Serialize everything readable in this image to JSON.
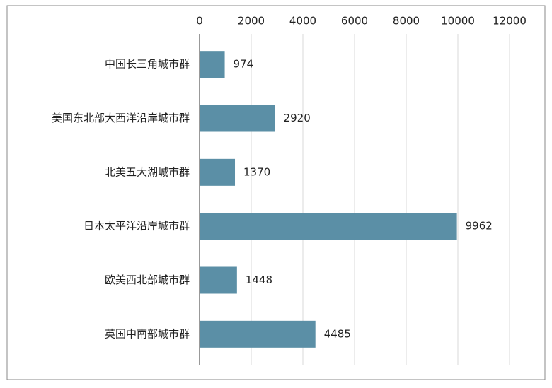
{
  "chart_data": {
    "type": "bar",
    "orientation": "horizontal",
    "categories": [
      "中国长三角城市群",
      "美国东北部大西洋沿岸城市群",
      "北美五大湖城市群",
      "日本太平洋沿岸城市群",
      "欧美西北部城市群",
      "英国中南部城市群"
    ],
    "values": [
      974,
      2920,
      1370,
      9962,
      1448,
      4485
    ],
    "color": "#5b8fa6",
    "xlim": [
      0,
      12000
    ],
    "xticks": [
      0,
      2000,
      4000,
      6000,
      8000,
      10000,
      12000
    ],
    "grid": true
  }
}
